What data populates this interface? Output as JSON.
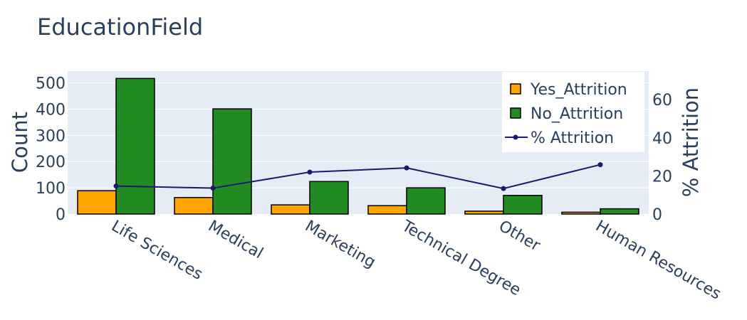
{
  "chart_data": {
    "type": "bar",
    "title": "EducationField",
    "categories": [
      "Life Sciences",
      "Medical",
      "Marketing",
      "Technical Degree",
      "Other",
      "Human Resources"
    ],
    "series": [
      {
        "name": "Yes_Attrition",
        "type": "bar",
        "axis": "y",
        "values": [
          89,
          63,
          35,
          32,
          11,
          7
        ],
        "color": "#ffa500"
      },
      {
        "name": "No_Attrition",
        "type": "bar",
        "axis": "y",
        "values": [
          517,
          401,
          124,
          100,
          71,
          20
        ],
        "color": "#228b22"
      },
      {
        "name": "% Attrition",
        "type": "line",
        "axis": "y2",
        "values": [
          14.7,
          13.6,
          22.0,
          24.2,
          13.4,
          25.9
        ],
        "color": "#191970"
      }
    ],
    "ylabel": "Count",
    "y2label": "% Attrition",
    "ylim": [
      0,
      545
    ],
    "y2lim": [
      0,
      75
    ],
    "yticks": [
      0,
      100,
      200,
      300,
      400,
      500
    ],
    "y2ticks": [
      0,
      20,
      40,
      60
    ],
    "grid": true,
    "legend_position": "top-right",
    "plot_background": "#e5ecf6",
    "bar_outline_color": "#000000"
  }
}
